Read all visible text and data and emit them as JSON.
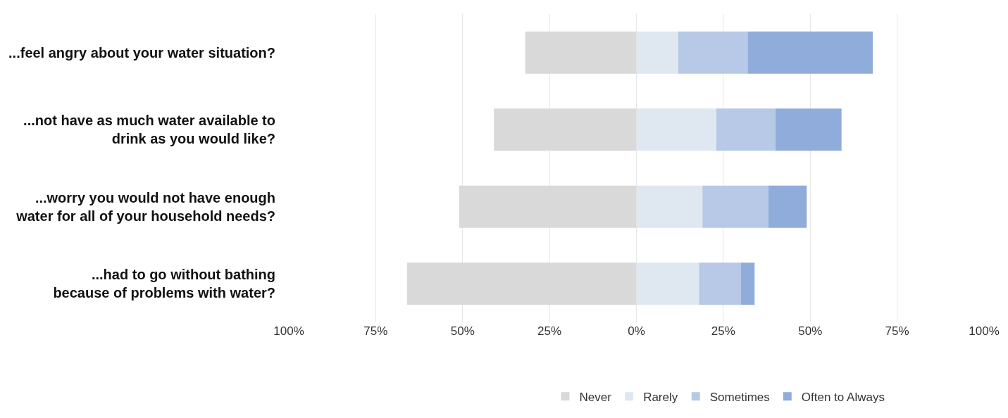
{
  "chart_data": {
    "type": "bar",
    "orientation": "horizontal",
    "stacked": true,
    "categories": [
      "...feel angry about your water situation?",
      "...not have as much water available to\ndrink as you would like?",
      "...worry you would not have enough\nwater for all of your household needs?",
      "...had to go without bathing\nbecause of problems with water?"
    ],
    "series": [
      {
        "name": "Never",
        "color": "#d9d9d9",
        "values": [
          -32,
          -41,
          -51,
          -66
        ]
      },
      {
        "name": "Rarely",
        "color": "#dfe7f1",
        "values": [
          12,
          23,
          19,
          18
        ]
      },
      {
        "name": "Sometimes",
        "color": "#b7c9e6",
        "values": [
          20,
          17,
          19,
          12
        ]
      },
      {
        "name": "Often to Always",
        "color": "#90acdb",
        "values": [
          36,
          19,
          11,
          4
        ]
      }
    ],
    "xlim": [
      -100,
      100
    ],
    "xticks": [
      {
        "value": -100,
        "label": "100%"
      },
      {
        "value": -75,
        "label": "75%"
      },
      {
        "value": -50,
        "label": "50%"
      },
      {
        "value": -25,
        "label": "25%"
      },
      {
        "value": 0,
        "label": "0%"
      },
      {
        "value": 25,
        "label": "25%"
      },
      {
        "value": 50,
        "label": "50%"
      },
      {
        "value": 75,
        "label": "75%"
      },
      {
        "value": 100,
        "label": "100%"
      }
    ],
    "grid": "x",
    "legend": "bottom"
  }
}
